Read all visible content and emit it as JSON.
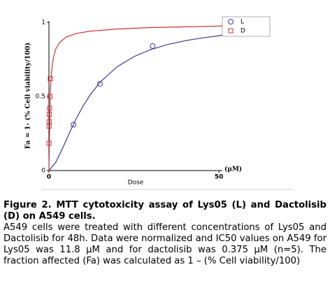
{
  "chart_data": {
    "type": "scatter",
    "y_label": "Fa = 1- (% Cell viability/100)",
    "x_label": "Dose",
    "x_unit": "(μM)",
    "xlim": [
      0,
      51
    ],
    "ylim": [
      0,
      1
    ],
    "xticks": [
      0,
      50
    ],
    "yticks": [
      0,
      {
        "value": 0.5,
        "label": "0.5"
      },
      1
    ],
    "legend": "top-right",
    "series": [
      {
        "name": "L",
        "color": "#3a3aa0",
        "marker": "circle",
        "x": [
          7.2,
          15,
          30.5
        ],
        "values": [
          0.31,
          0.585,
          0.84
        ],
        "curve_x": [
          0,
          2,
          4,
          6,
          8,
          10,
          12,
          15,
          20,
          25,
          30,
          35,
          40,
          45,
          50,
          51
        ],
        "curve_values": [
          0,
          0.055,
          0.15,
          0.253,
          0.349,
          0.434,
          0.507,
          0.595,
          0.7,
          0.769,
          0.817,
          0.851,
          0.876,
          0.895,
          0.91,
          0.913
        ]
      },
      {
        "name": "D",
        "color": "#d03030",
        "marker": "square",
        "x": [
          0.02,
          0.05,
          0.08,
          0.12,
          0.2,
          0.3,
          0.4
        ],
        "values": [
          0.184,
          0.3,
          0.33,
          0.38,
          0.42,
          0.5,
          0.62
        ],
        "curve_x": [
          0,
          0.2,
          0.4,
          0.6,
          1,
          1.5,
          2,
          3,
          5,
          8,
          12,
          20,
          30,
          40,
          50,
          51
        ],
        "curve_values": [
          0,
          0.3,
          0.52,
          0.62,
          0.72,
          0.78,
          0.82,
          0.86,
          0.9,
          0.925,
          0.94,
          0.955,
          0.965,
          0.97,
          0.975,
          0.976
        ]
      }
    ],
    "caption": {
      "title": "Figure 2. MTT cytotoxicity assay of Lys05 (L) and Dactolisib (D) on A549 cells.",
      "text": "A549 cells were treated with different concentrations of Lys05 and Dactolisib for 48h. Data were normalized and IC50 values on A549 for Lys05 was 11.8 μM and for dactolisib was 0.375 μM (n=5). The fraction affected (Fa) was calculated as 1 – (% Cell viability/100)"
    }
  }
}
